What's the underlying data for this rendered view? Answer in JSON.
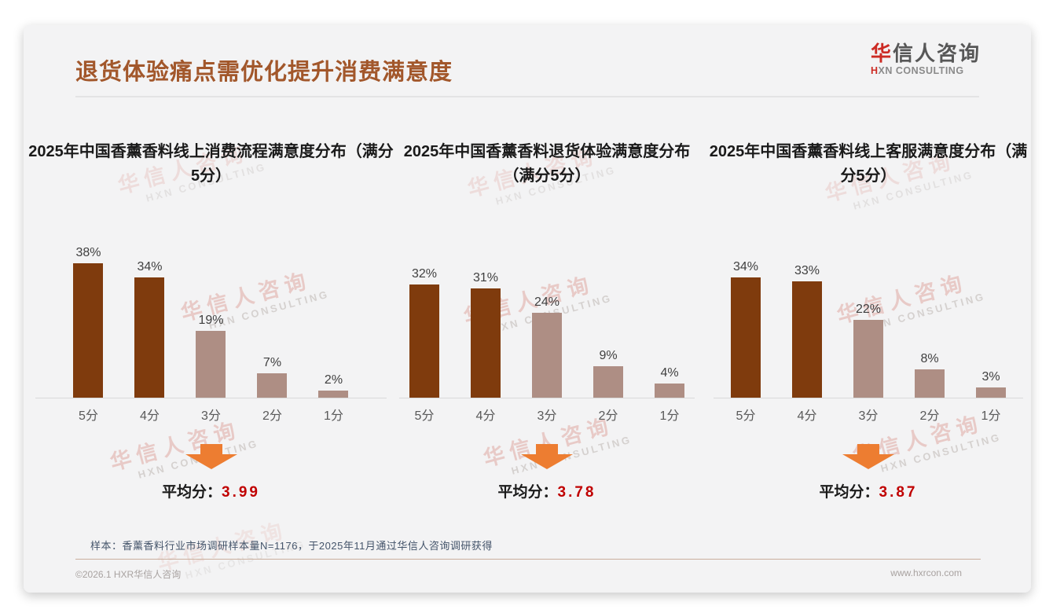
{
  "slide": {
    "title": "退货体验痛点需优化提升消费满意度",
    "logo": {
      "zh_accent": "华",
      "zh_rest": "信人咨询",
      "en_accent": "H",
      "en_rest": "XN CONSULTING"
    },
    "watermark": {
      "zh": "华信人咨询",
      "en": "HXN CONSULTING"
    },
    "footnote": "样本：香薰香料行业市场调研样本量N=1176，于2025年11月通过华信人咨询调研获得",
    "footer": {
      "left": "©2026.1 HXR华信人咨询",
      "right": "www.hxrcon.com"
    }
  },
  "colors": {
    "title": "#A2572B",
    "bar_primary": "#7F3B0D",
    "bar_secondary": "#AE8E84",
    "arrow": "#ED7D31",
    "average_value": "#C00000",
    "logo_accent": "#CC2B24"
  },
  "chart_data": [
    {
      "type": "bar",
      "title": "2025年中国香薰香料线上消费流程满意度分布（满分5分）",
      "categories": [
        "5分",
        "4分",
        "3分",
        "2分",
        "1分"
      ],
      "values": [
        38,
        34,
        19,
        7,
        2
      ],
      "value_labels": [
        "38%",
        "34%",
        "19%",
        "7%",
        "2%"
      ],
      "bar_styles": [
        "primary",
        "primary",
        "secondary",
        "secondary",
        "secondary"
      ],
      "average_label": "平均分：",
      "average_value": "3.99",
      "ylim": [
        0,
        40
      ],
      "grid": false,
      "legend": "none"
    },
    {
      "type": "bar",
      "title": "2025年中国香薰香料退货体验满意度分布（满分5分）",
      "categories": [
        "5分",
        "4分",
        "3分",
        "2分",
        "1分"
      ],
      "values": [
        32,
        31,
        24,
        9,
        4
      ],
      "value_labels": [
        "32%",
        "31%",
        "24%",
        "9%",
        "4%"
      ],
      "bar_styles": [
        "primary",
        "primary",
        "secondary",
        "secondary",
        "secondary"
      ],
      "average_label": "平均分：",
      "average_value": "3.78",
      "ylim": [
        0,
        40
      ],
      "grid": false,
      "legend": "none"
    },
    {
      "type": "bar",
      "title": "2025年中国香薰香料线上客服满意度分布（满分5分）",
      "categories": [
        "5分",
        "4分",
        "3分",
        "2分",
        "1分"
      ],
      "values": [
        34,
        33,
        22,
        8,
        3
      ],
      "value_labels": [
        "34%",
        "33%",
        "22%",
        "8%",
        "3%"
      ],
      "bar_styles": [
        "primary",
        "primary",
        "secondary",
        "secondary",
        "secondary"
      ],
      "average_label": "平均分：",
      "average_value": "3.87",
      "ylim": [
        0,
        40
      ],
      "grid": false,
      "legend": "none"
    }
  ]
}
